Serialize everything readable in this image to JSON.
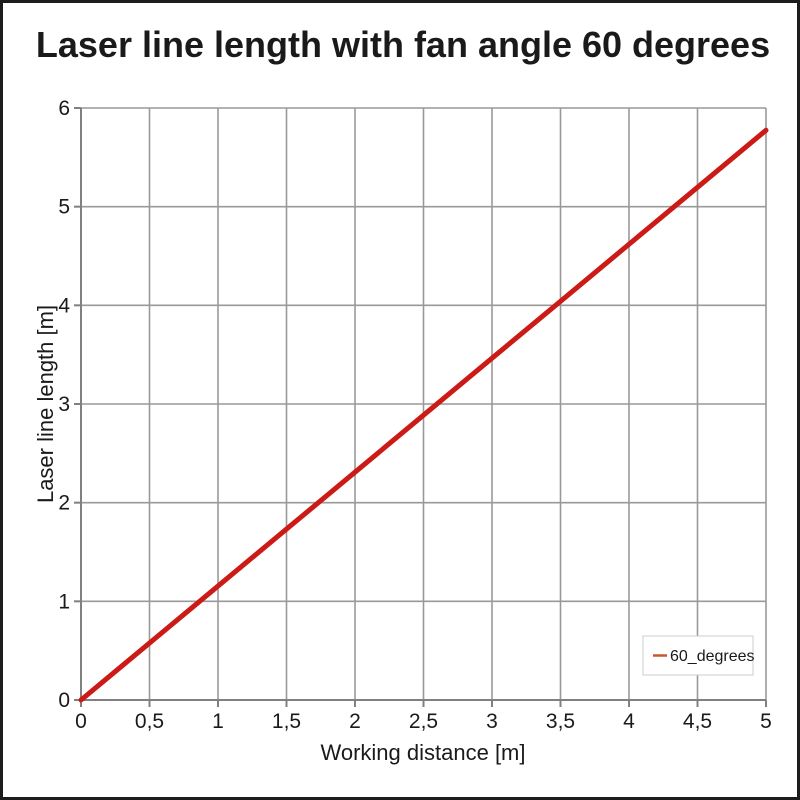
{
  "chart_data": {
    "type": "line",
    "title": "Laser line length with fan angle 60 degrees",
    "xlabel": "Working distance [m]",
    "ylabel": "Laser line length [m]",
    "xlim": [
      0,
      5
    ],
    "ylim": [
      0,
      6
    ],
    "grid": true,
    "legend_position": "bottom-right",
    "x_ticks": {
      "values": [
        0,
        0.5,
        1,
        1.5,
        2,
        2.5,
        3,
        3.5,
        4,
        4.5,
        5
      ],
      "labels": [
        "0",
        "0,5",
        "1",
        "1,5",
        "2",
        "2,5",
        "3",
        "3,5",
        "4",
        "4,5",
        "5"
      ]
    },
    "y_ticks": {
      "values": [
        0,
        1,
        2,
        3,
        4,
        5,
        6
      ],
      "labels": [
        "0",
        "1",
        "2",
        "3",
        "4",
        "5",
        "6"
      ]
    },
    "series": [
      {
        "name": "60_degrees",
        "color": "#cc1a16",
        "legend_marker_color": "#c9572b",
        "x": [
          0,
          0.5,
          1,
          1.5,
          2,
          2.5,
          3,
          3.5,
          4,
          4.5,
          5
        ],
        "y": [
          0,
          0.577,
          1.155,
          1.732,
          2.309,
          2.887,
          3.464,
          4.041,
          4.619,
          5.196,
          5.774
        ]
      }
    ]
  },
  "colors": {
    "background": "#ffffff",
    "frame_border": "#1c1c1c",
    "grid": "#999999",
    "axis": "#808080",
    "text": "#1a1a1a",
    "legend_border": "#cccccc",
    "legend_background": "#ffffff"
  }
}
